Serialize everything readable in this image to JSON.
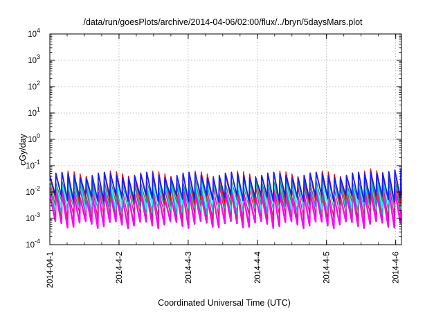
{
  "chart_data": {
    "type": "line",
    "title": "/data/run/goesPlots/archive/2014-04-06/02:00/flux/../bryn/5daysMars.plot",
    "xlabel": "Coordinated Universal Time (UTC)",
    "ylabel": "cGy/day",
    "y_scale": "log",
    "ylim": [
      0.0001,
      10000
    ],
    "y_ticks": [
      {
        "base": "10",
        "exp": "-4",
        "value": 0.0001
      },
      {
        "base": "10",
        "exp": "-3",
        "value": 0.001
      },
      {
        "base": "10",
        "exp": "-2",
        "value": 0.01
      },
      {
        "base": "10",
        "exp": "-1",
        "value": 0.1
      },
      {
        "base": "10",
        "exp": "0",
        "value": 1
      },
      {
        "base": "10",
        "exp": "1",
        "value": 10
      },
      {
        "base": "10",
        "exp": "2",
        "value": 100
      },
      {
        "base": "10",
        "exp": "3",
        "value": 1000
      },
      {
        "base": "10",
        "exp": "4",
        "value": 10000
      }
    ],
    "x_ticks": [
      {
        "label": "2014-04-1",
        "value": "2014-04-01"
      },
      {
        "label": "2014-4-2",
        "value": "2014-04-02"
      },
      {
        "label": "2014-4-3",
        "value": "2014-04-03"
      },
      {
        "label": "2014-4-4",
        "value": "2014-04-04"
      },
      {
        "label": "2014-4-5",
        "value": "2014-04-05"
      },
      {
        "label": "2014-4-6",
        "value": "2014-04-06"
      }
    ],
    "xlim": [
      "2014-04-01",
      "2014-04-06 02:00"
    ],
    "grid": true,
    "legend": "none",
    "cycle_hours": 2.1,
    "series": [
      {
        "color": "#ff00ff",
        "peak": 0.008,
        "trough": 0.0006
      },
      {
        "color": "#cc2266",
        "peak": 0.015,
        "trough": 0.0012
      },
      {
        "color": "#00bcbc",
        "peak": 0.02,
        "trough": 0.002
      },
      {
        "color": "#00ffff",
        "peak": 0.025,
        "trough": 0.003
      },
      {
        "color": "#2e8b57",
        "peak": 0.03,
        "trough": 0.004
      },
      {
        "color": "#ff0000",
        "peak": 0.05,
        "trough": 0.005
      },
      {
        "color": "#1a1aff",
        "peak": 0.045,
        "trough": 0.006
      }
    ]
  }
}
